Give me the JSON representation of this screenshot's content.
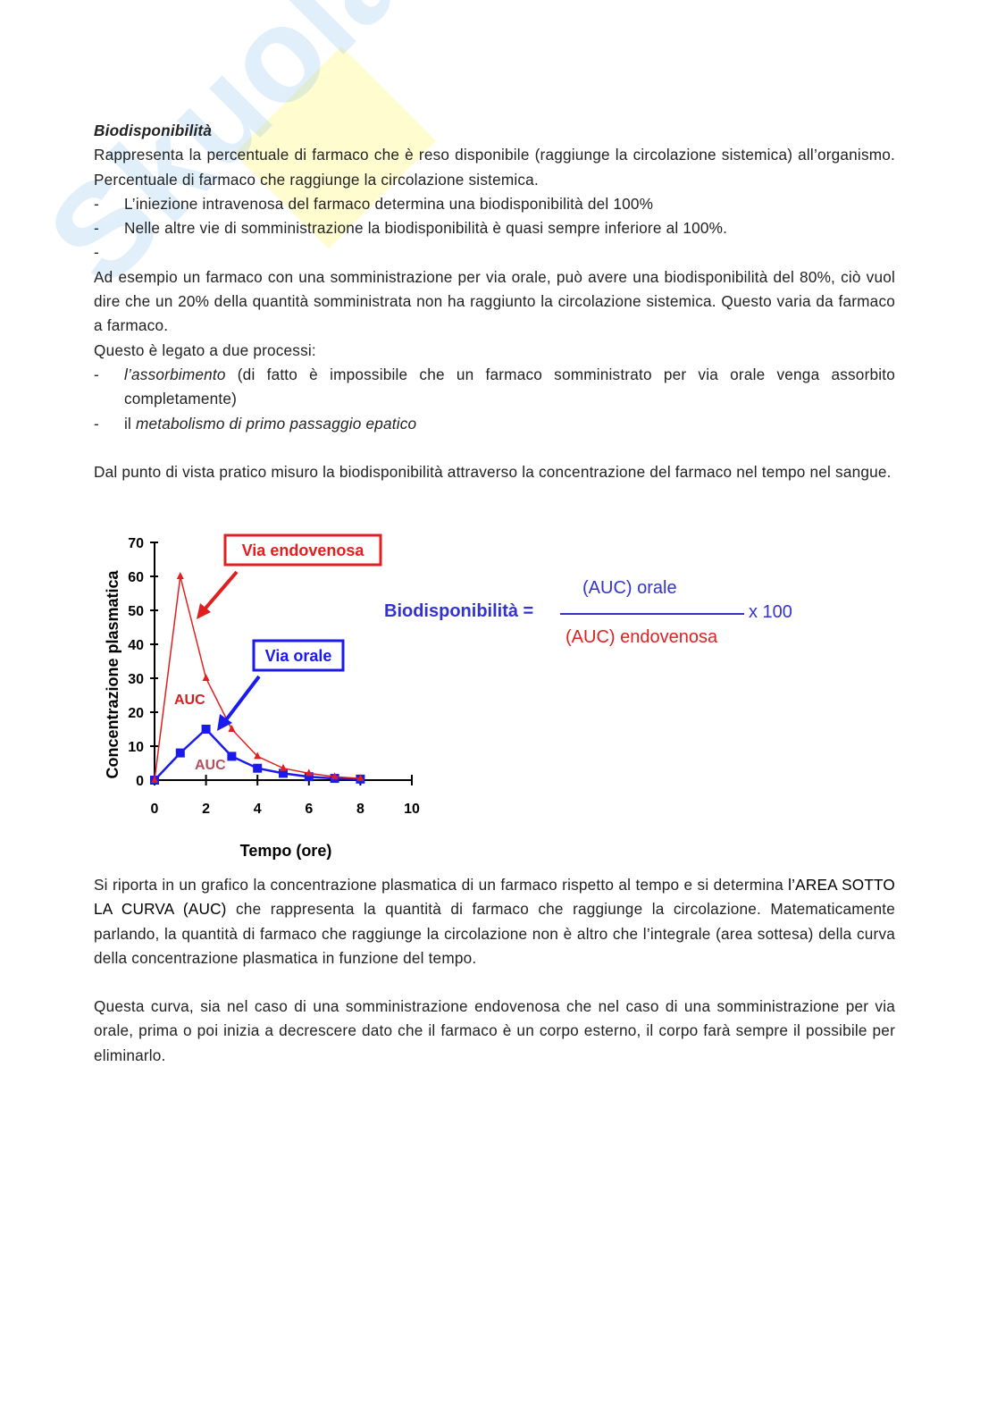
{
  "watermark": "Skuola.net",
  "heading": "Biodisponibilità",
  "p1": "Rappresenta la percentuale di farmaco che è reso disponibile (raggiunge la circolazione sistemica) all’organismo. Percentuale di farmaco che raggiunge la circolazione sistemica.",
  "bullets1": [
    "L’iniezione intravenosa del farmaco determina una biodisponibilità del 100%",
    "Nelle altre vie di somministrazione la biodisponibilità è quasi sempre inferiore al 100%.",
    ""
  ],
  "dash": "-",
  "p2": "Ad esempio un farmaco con una somministrazione per via orale, può avere una biodisponibilità del 80%, ciò vuol dire che un 20% della quantità somministrata non ha raggiunto la circolazione sistemica. Questo varia da farmaco a farmaco.",
  "p3": "Questo è legato a due processi:",
  "b2_italic": "l’assorbimento",
  "b2_rest": " (di fatto è impossibile che un farmaco somministrato per via orale venga assorbito completamente)",
  "b3_pre": "il ",
  "b3_italic": "metabolismo di primo passaggio epatico",
  "p4": "Dal punto di vista pratico misuro la biodisponibilità attraverso la concentrazione del farmaco nel tempo nel sangue.",
  "p5_pre": "Si riporta in un grafico la concentrazione plasmatica di un farmaco rispetto al tempo e si determina ",
  "p5_bold": "l’AREA SOTTO LA CURVA (AUC)",
  "p5_post": " che rappresenta la quantità di farmaco che raggiunge la circolazione. Matematicamente parlando, la quantità di farmaco che raggiunge la circolazione non è altro che l’integrale (area sottesa) della curva della concentrazione plasmatica in funzione del tempo.",
  "p6": "Questa curva, sia nel caso di una somministrazione endovenosa che nel caso di una somministrazione per via orale, prima o poi inizia a decrescere dato che il farmaco è un corpo esterno, il corpo farà sempre il possibile per eliminarlo.",
  "formula": {
    "lhs": "Biodisponibilità =",
    "numerator": "(AUC) orale",
    "denominator": "(AUC) endovenosa",
    "multiplier": "x 100",
    "blue": "#3333cc",
    "red": "#dd2222"
  },
  "chart_data": {
    "type": "line",
    "xlabel": "Tempo (ore)",
    "ylabel": "Concentrazione plasmatica",
    "xlim": [
      0,
      10
    ],
    "ylim": [
      0,
      70
    ],
    "xticks": [
      "0",
      "2",
      "4",
      "6",
      "8",
      "10"
    ],
    "yticks": [
      "0",
      "10",
      "20",
      "30",
      "40",
      "50",
      "60",
      "70"
    ],
    "x": [
      0,
      1,
      2,
      3,
      4,
      5,
      6,
      7,
      8
    ],
    "series": [
      {
        "name": "Via endovenosa",
        "color": "#e02020",
        "marker": "triangle",
        "values": [
          0,
          60,
          30,
          15,
          7,
          3.5,
          2,
          1,
          0.5
        ]
      },
      {
        "name": "Via orale",
        "color": "#1a1aee",
        "marker": "square",
        "values": [
          0,
          8,
          15,
          7,
          3.5,
          2,
          1,
          0.5,
          0.3
        ]
      }
    ],
    "annotations": [
      {
        "text": "AUC",
        "color": "#cc2222"
      },
      {
        "text": "AUC",
        "color": "#b05060"
      }
    ],
    "grid": false
  }
}
